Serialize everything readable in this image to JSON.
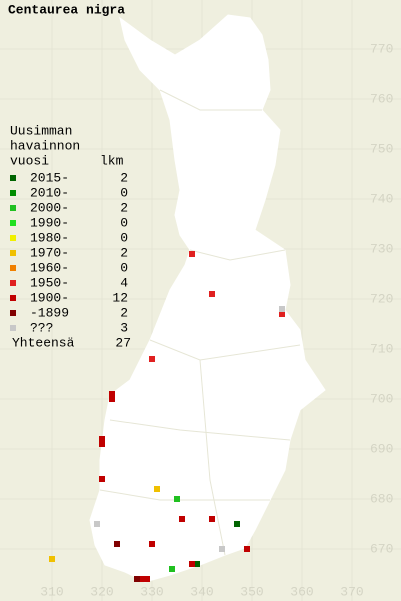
{
  "title": "Centaurea nigra",
  "legend": {
    "heading": [
      "Uusimman",
      "havainnon"
    ],
    "year_header": "vuosi",
    "count_header": "lkm",
    "rows": [
      {
        "label": "2015-",
        "count": 2,
        "color": "#006400",
        "squares": [
          [
            347,
            675
          ],
          [
            339,
            667
          ]
        ]
      },
      {
        "label": "2010-",
        "count": 0,
        "color": "#008c00",
        "squares": []
      },
      {
        "label": "2000-",
        "count": 2,
        "color": "#20c020",
        "squares": [
          [
            335,
            680
          ],
          [
            334,
            666
          ]
        ]
      },
      {
        "label": "1990-",
        "count": 0,
        "color": "#20e020",
        "squares": []
      },
      {
        "label": "1980-",
        "count": 0,
        "color": "#f0f000",
        "squares": []
      },
      {
        "label": "1970-",
        "count": 2,
        "color": "#f0c000",
        "squares": [
          [
            331,
            682
          ],
          [
            310,
            668
          ]
        ]
      },
      {
        "label": "1960-",
        "count": 0,
        "color": "#f08000",
        "squares": []
      },
      {
        "label": "1950-",
        "count": 4,
        "color": "#e02020",
        "squares": [
          [
            338,
            729
          ],
          [
            342,
            721
          ],
          [
            356,
            717
          ],
          [
            330,
            708
          ]
        ]
      },
      {
        "label": "1900-",
        "count": 12,
        "color": "#c00000",
        "squares": [
          [
            322,
            701
          ],
          [
            322,
            700
          ],
          [
            320,
            692
          ],
          [
            320,
            691
          ],
          [
            320,
            684
          ],
          [
            336,
            676
          ],
          [
            342,
            676
          ],
          [
            349,
            670
          ],
          [
            330,
            671
          ],
          [
            328,
            664
          ],
          [
            329,
            664
          ],
          [
            338,
            667
          ]
        ]
      },
      {
        "label": "-1899",
        "count": 2,
        "color": "#800000",
        "squares": [
          [
            323,
            671
          ],
          [
            327,
            664
          ]
        ]
      },
      {
        "label": "???",
        "count": 3,
        "color": "#c8c8c8",
        "squares": [
          [
            356,
            718
          ],
          [
            319,
            675
          ],
          [
            344,
            670
          ]
        ]
      }
    ],
    "total_label": "Yhteensä",
    "total": 27
  },
  "axes": {
    "northing": [
      770,
      760,
      750,
      740,
      730,
      720,
      710,
      700,
      690,
      680,
      670
    ],
    "easting": [
      310,
      320,
      330,
      340,
      350,
      360,
      370
    ]
  }
}
